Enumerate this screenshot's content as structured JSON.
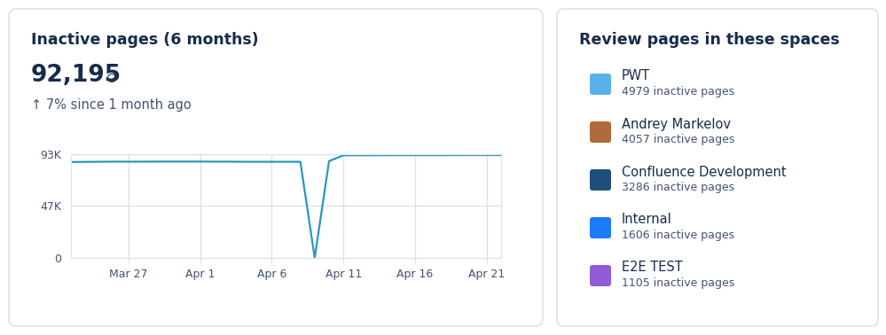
{
  "chart_data": {
    "type": "line",
    "title": "Inactive pages (6 months)",
    "categories": [
      null,
      null,
      null,
      null,
      "Mar 27",
      null,
      null,
      null,
      null,
      "Apr 1",
      null,
      null,
      null,
      null,
      "Apr 6",
      null,
      null,
      null,
      null,
      "Apr 11",
      null,
      null,
      null,
      null,
      "Apr 16",
      null,
      null,
      null,
      null,
      "Apr 21",
      null
    ],
    "values": [
      86000,
      86100,
      86200,
      86300,
      86300,
      86300,
      86400,
      86400,
      86400,
      86400,
      86300,
      86300,
      86200,
      86200,
      86200,
      86200,
      86200,
      0,
      86800,
      92000,
      92000,
      92000,
      92100,
      92100,
      92100,
      92100,
      92100,
      92200,
      92200,
      92200,
      92200
    ],
    "color": "#2898BD",
    "ylim": [
      0,
      93000
    ],
    "yticks": [
      0,
      {
        "value": 47000,
        "label": "47K"
      },
      {
        "value": 93000,
        "label": "93K"
      }
    ],
    "grid": true
  },
  "summary": {
    "total": "92,195",
    "change": "↑ 7% since 1 month ago"
  },
  "spaces_panel": {
    "title": "Review pages in these spaces",
    "items": [
      {
        "name": "PWT",
        "inactive_pages": "4979 inactive pages"
      },
      {
        "name": "Andrey Markelov",
        "inactive_pages": "4057 inactive pages"
      },
      {
        "name": "Confluence Development",
        "inactive_pages": "3286 inactive pages"
      },
      {
        "name": "Internal",
        "inactive_pages": "1606 inactive pages"
      },
      {
        "name": "E2E TEST",
        "inactive_pages": "1105 inactive pages"
      }
    ]
  }
}
